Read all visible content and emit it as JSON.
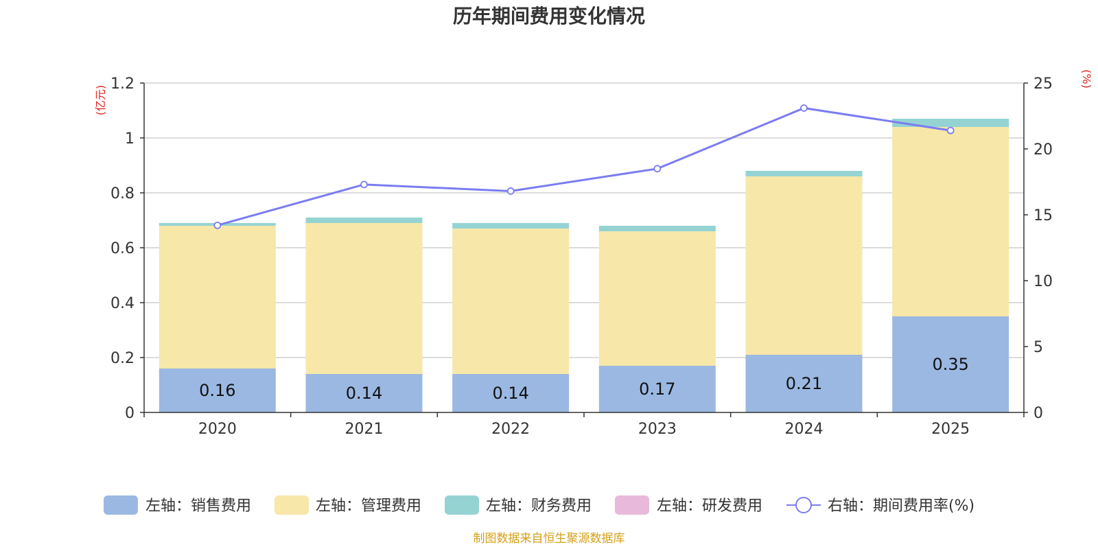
{
  "colors": {
    "sales": "#9bb8e2",
    "admin": "#f7e7a9",
    "finance": "#95d3d3",
    "rnd": "#e8b9da",
    "rate": "#7b7cf0",
    "unit": "#e02020",
    "source": "#d4a017"
  },
  "chart_data": {
    "type": "bar",
    "title": "历年期间费用变化情况",
    "categories": [
      "2020",
      "2021",
      "2022",
      "2023",
      "2024",
      "2025"
    ],
    "left_axis": {
      "unit": "(亿元)",
      "ylim": [
        0,
        1.2
      ],
      "ticks": [
        "0",
        "0.2",
        "0.4",
        "0.6",
        "0.8",
        "1",
        "1.2"
      ]
    },
    "right_axis": {
      "unit": "(%)",
      "ylim": [
        0,
        25
      ],
      "ticks": [
        "0",
        "5",
        "10",
        "15",
        "20",
        "25"
      ]
    },
    "series": [
      {
        "name": "左轴：销售费用",
        "values": [
          0.16,
          0.14,
          0.14,
          0.17,
          0.21,
          0.35
        ],
        "labels": [
          "0.16",
          "0.14",
          "0.14",
          "0.17",
          "0.21",
          "0.35"
        ]
      },
      {
        "name": "左轴：管理费用",
        "values": [
          0.52,
          0.55,
          0.53,
          0.49,
          0.65,
          0.69
        ]
      },
      {
        "name": "左轴：财务费用",
        "values": [
          0.01,
          0.02,
          0.02,
          0.02,
          0.02,
          0.03
        ]
      },
      {
        "name": "左轴：研发费用",
        "values": [
          0,
          0,
          0,
          0,
          0,
          0
        ]
      },
      {
        "name": "右轴：期间费用率(%)",
        "type": "line",
        "axis": "right",
        "values": [
          14.2,
          17.3,
          16.8,
          18.5,
          23.1,
          21.4
        ]
      }
    ],
    "source": "制图数据来自恒生聚源数据库"
  }
}
